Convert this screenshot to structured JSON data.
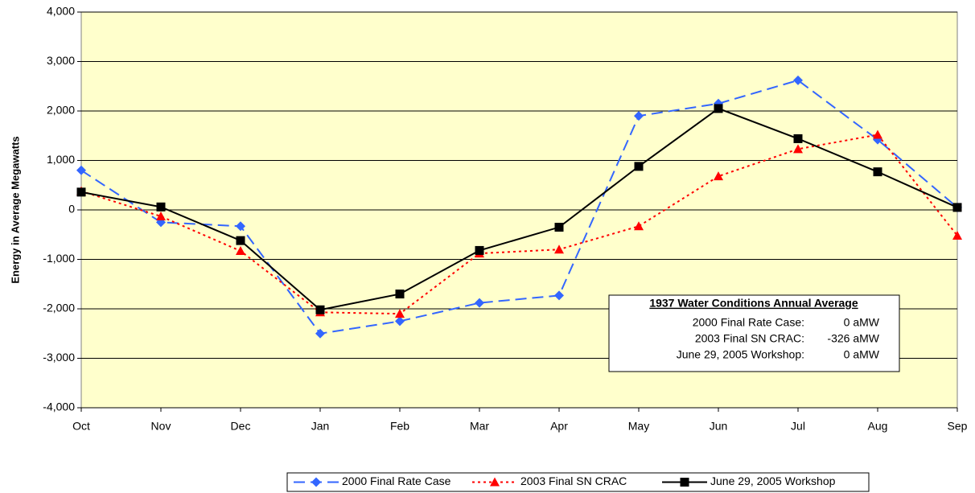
{
  "chart_data": {
    "type": "line",
    "y_label": "Energy in Average Megawatts",
    "categories": [
      "Oct",
      "Nov",
      "Dec",
      "Jan",
      "Feb",
      "Mar",
      "Apr",
      "May",
      "Jun",
      "Jul",
      "Aug",
      "Sep"
    ],
    "series": [
      {
        "name": "2000 Final Rate Case",
        "color": "#3366ff",
        "marker": "diamond",
        "line_style": "dashed",
        "values": [
          800,
          -250,
          -330,
          -2500,
          -2250,
          -1880,
          -1730,
          1900,
          2150,
          2620,
          1420,
          50
        ]
      },
      {
        "name": "2003 Final SN CRAC",
        "color": "#ff0000",
        "marker": "triangle",
        "line_style": "dotted",
        "values": [
          380,
          -130,
          -830,
          -2070,
          -2100,
          -880,
          -800,
          -330,
          680,
          1230,
          1520,
          -520
        ]
      },
      {
        "name": "June 29, 2005 Workshop",
        "color": "#000000",
        "marker": "square",
        "line_style": "solid",
        "values": [
          360,
          60,
          -620,
          -2020,
          -1700,
          -820,
          -350,
          880,
          2050,
          1440,
          770,
          50
        ]
      }
    ],
    "ylim": [
      -4000,
      4000
    ],
    "yticks": [
      {
        "value": -4000,
        "label": "-4,000"
      },
      {
        "value": -3000,
        "label": "-3,000"
      },
      {
        "value": -2000,
        "label": "-2,000"
      },
      {
        "value": -1000,
        "label": "-1,000"
      },
      0,
      {
        "value": 1000,
        "label": "1,000"
      },
      {
        "value": 2000,
        "label": "2,000"
      },
      {
        "value": 3000,
        "label": "3,000"
      },
      {
        "value": 4000,
        "label": "4,000"
      }
    ],
    "grid": true,
    "plot_background": "#ffffcc",
    "legend": "bottom",
    "annotation": {
      "title": "1937 Water Conditions Annual Average",
      "rows": [
        {
          "label": "2000 Final Rate Case:",
          "value": "0 aMW"
        },
        {
          "label": "2003 Final SN CRAC:",
          "value": "-326 aMW"
        },
        {
          "label": "June 29, 2005 Workshop:",
          "value": "0 aMW"
        }
      ]
    }
  }
}
